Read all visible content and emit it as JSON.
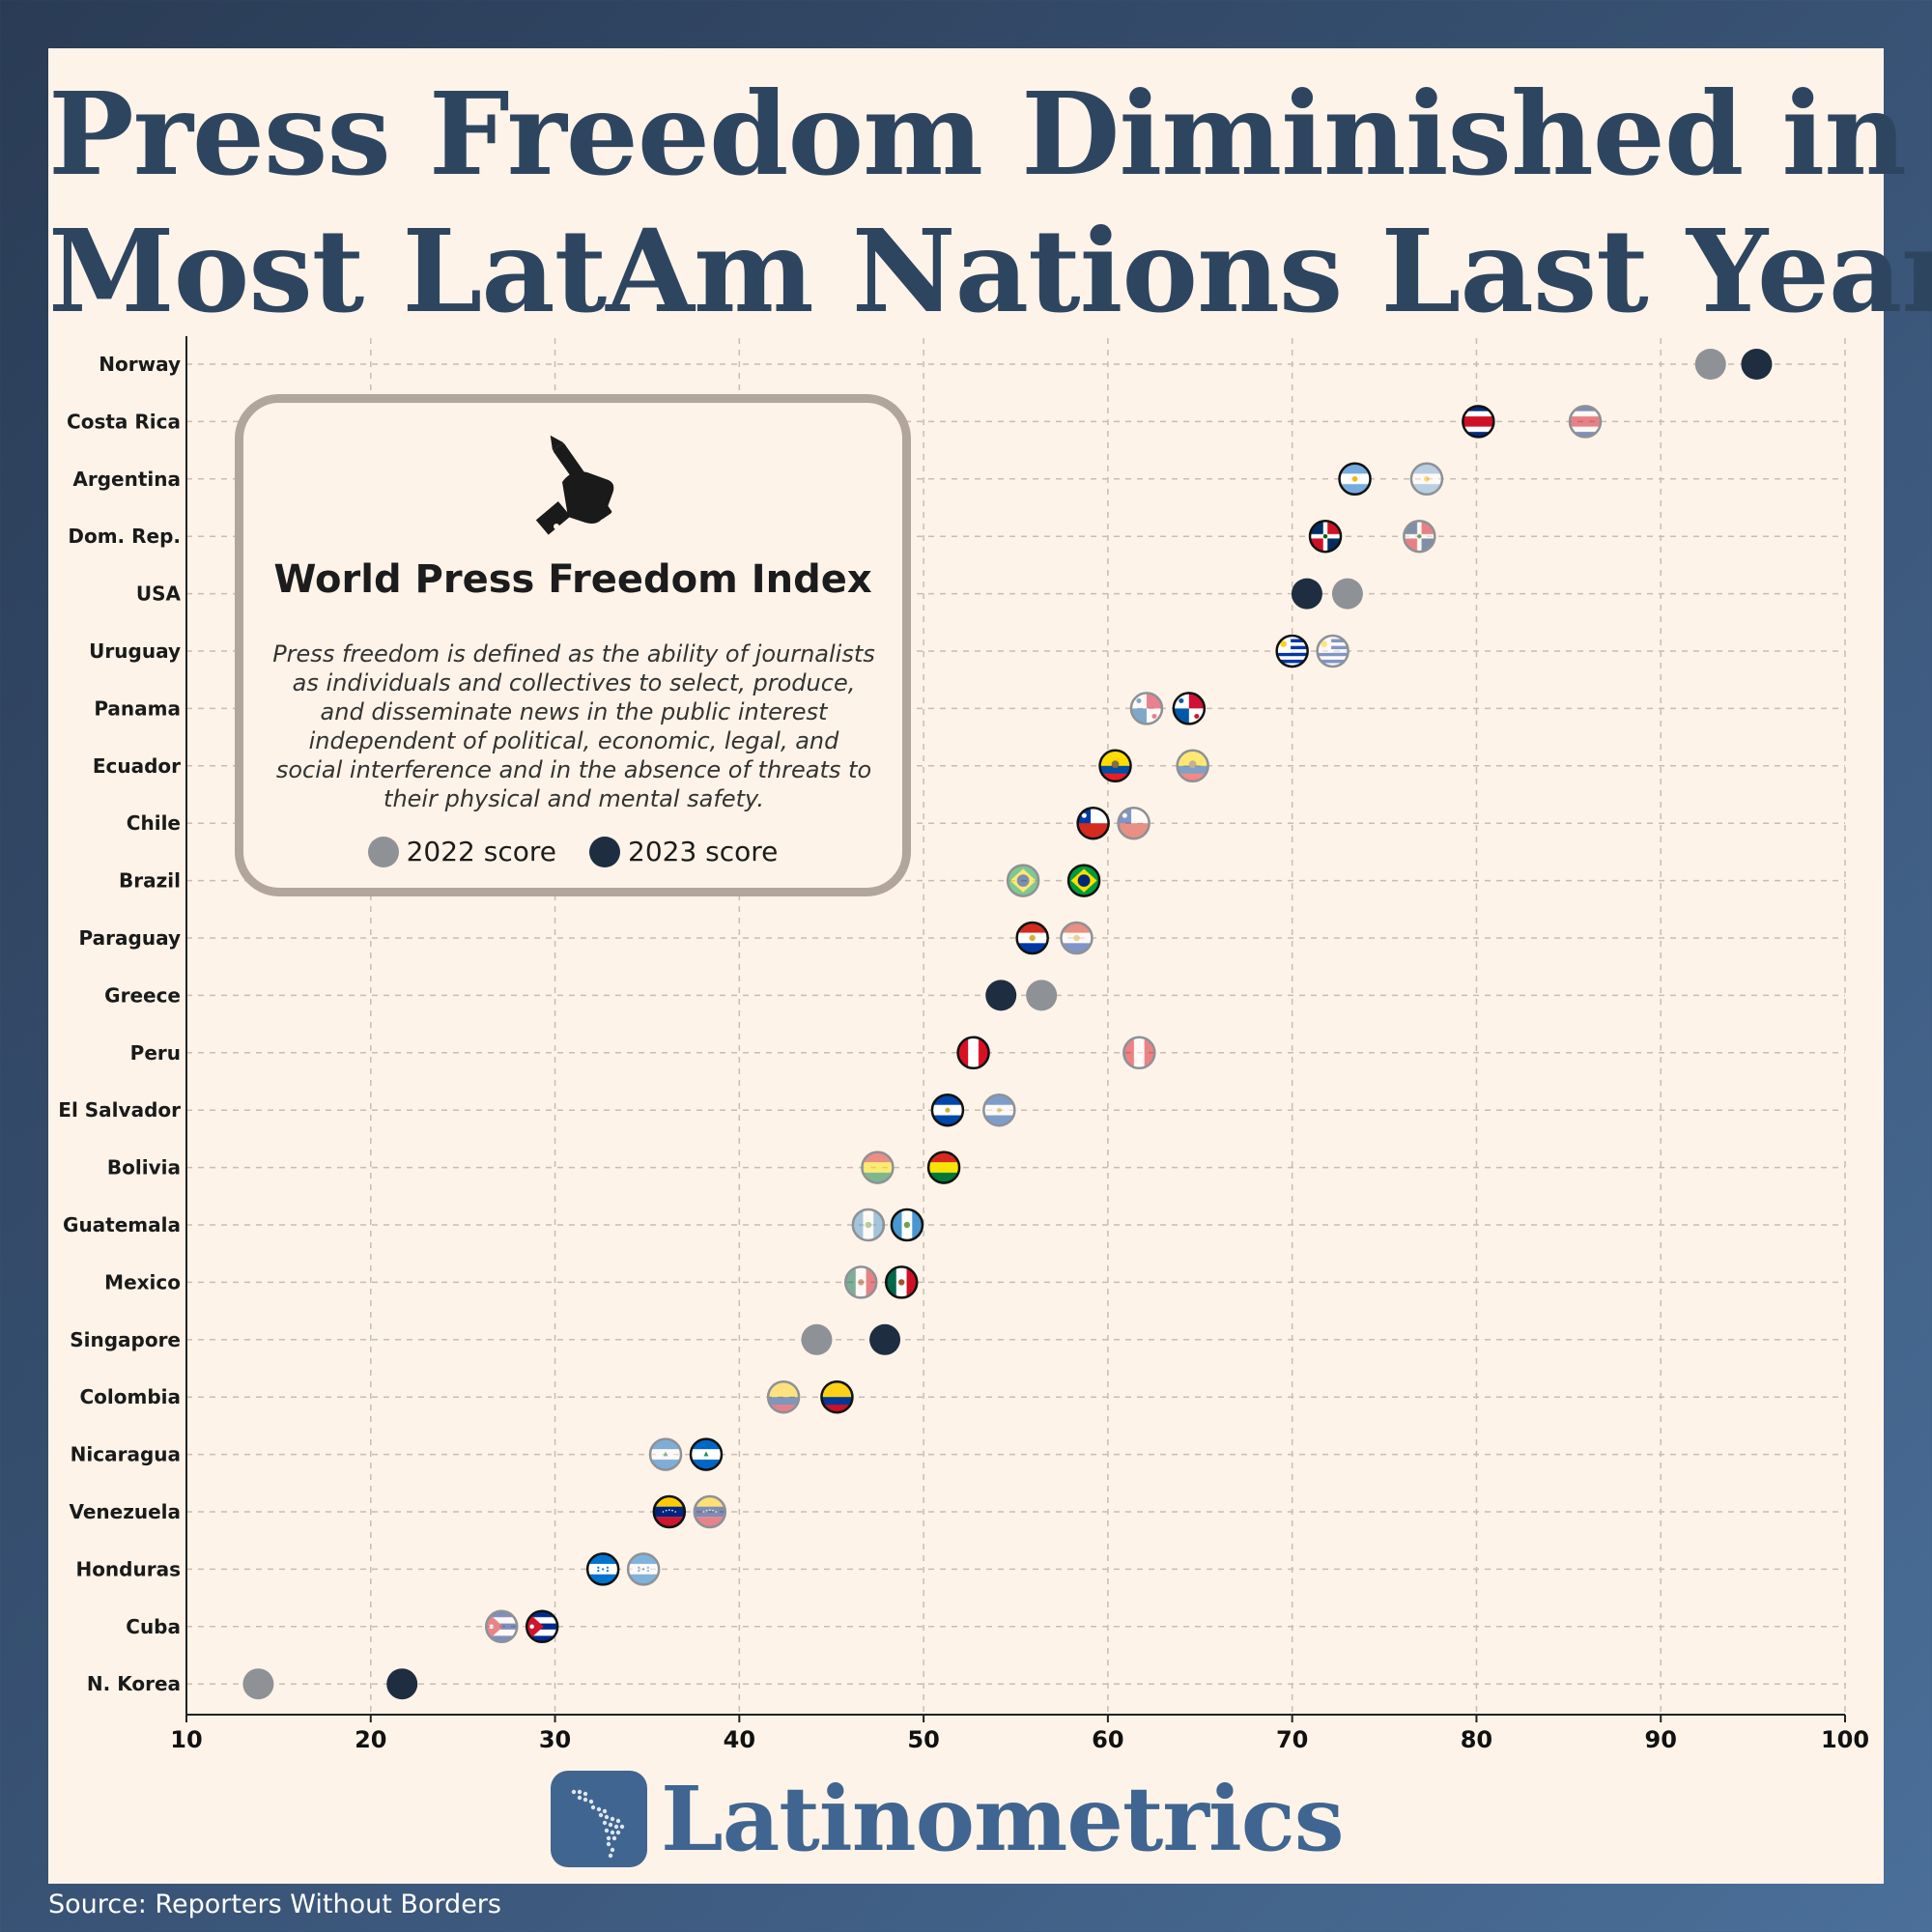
{
  "title": {
    "line1": "Press Freedom Diminished in",
    "line2": "Most LatAm Nations Last Year"
  },
  "infobox": {
    "icon": "hand-holding-pencil-icon",
    "title": "World Press Freedom Index",
    "text": "Press freedom is defined as the ability of journalists as individuals and collectives to select, produce, and disseminate news in the public interest independent of political, economic, legal, and social interference and in the absence of threats to their physical and mental safety.",
    "legend": [
      {
        "label": "2022 score",
        "color": "#8e9196"
      },
      {
        "label": "2023 score",
        "color": "#1f2d40"
      }
    ]
  },
  "brand": "Latinometrics",
  "source": "Source: Reporters Without Borders",
  "colors": {
    "gray2022": "#8e9196",
    "navy2023": "#1f2d40",
    "title": "#2e4560",
    "brand": "#3f6590"
  },
  "chart_data": {
    "type": "dumbbell",
    "xlim": [
      10,
      100
    ],
    "x_ticks": [
      10,
      20,
      30,
      40,
      50,
      60,
      70,
      80,
      90,
      100
    ],
    "grid": true,
    "series": [
      {
        "name": "2022 score"
      },
      {
        "name": "2023 score"
      }
    ],
    "rows": [
      {
        "country": "Norway",
        "flag": "none",
        "v2022": 92.7,
        "v2023": 95.2
      },
      {
        "country": "Costa Rica",
        "flag": "costa-rica",
        "v2022": 85.9,
        "v2023": 80.1
      },
      {
        "country": "Argentina",
        "flag": "argentina",
        "v2022": 77.3,
        "v2023": 73.4
      },
      {
        "country": "Dom. Rep.",
        "flag": "dominican-republic",
        "v2022": 76.9,
        "v2023": 71.8
      },
      {
        "country": "USA",
        "flag": "none",
        "v2022": 73.0,
        "v2023": 70.8
      },
      {
        "country": "Uruguay",
        "flag": "uruguay",
        "v2022": 72.2,
        "v2023": 70.0
      },
      {
        "country": "Panama",
        "flag": "panama",
        "v2022": 62.1,
        "v2023": 64.4
      },
      {
        "country": "Ecuador",
        "flag": "ecuador",
        "v2022": 64.6,
        "v2023": 60.4
      },
      {
        "country": "Chile",
        "flag": "chile",
        "v2022": 61.4,
        "v2023": 59.2
      },
      {
        "country": "Brazil",
        "flag": "brazil",
        "v2022": 55.4,
        "v2023": 58.7
      },
      {
        "country": "Paraguay",
        "flag": "paraguay",
        "v2022": 58.3,
        "v2023": 55.9
      },
      {
        "country": "Greece",
        "flag": "none",
        "v2022": 56.4,
        "v2023": 54.2
      },
      {
        "country": "Peru",
        "flag": "peru",
        "v2022": 61.7,
        "v2023": 52.7
      },
      {
        "country": "El Salvador",
        "flag": "el-salvador",
        "v2022": 54.1,
        "v2023": 51.3
      },
      {
        "country": "Bolivia",
        "flag": "bolivia",
        "v2022": 47.5,
        "v2023": 51.1
      },
      {
        "country": "Guatemala",
        "flag": "guatemala",
        "v2022": 47.0,
        "v2023": 49.1
      },
      {
        "country": "Mexico",
        "flag": "mexico",
        "v2022": 46.6,
        "v2023": 48.8
      },
      {
        "country": "Singapore",
        "flag": "none",
        "v2022": 44.2,
        "v2023": 47.9
      },
      {
        "country": "Colombia",
        "flag": "colombia",
        "v2022": 42.4,
        "v2023": 45.3
      },
      {
        "country": "Nicaragua",
        "flag": "nicaragua",
        "v2022": 36.0,
        "v2023": 38.2
      },
      {
        "country": "Venezuela",
        "flag": "venezuela",
        "v2022": 38.4,
        "v2023": 36.2
      },
      {
        "country": "Honduras",
        "flag": "honduras",
        "v2022": 34.8,
        "v2023": 32.6
      },
      {
        "country": "Cuba",
        "flag": "cuba",
        "v2022": 27.1,
        "v2023": 29.3
      },
      {
        "country": "N. Korea",
        "flag": "none",
        "v2022": 13.9,
        "v2023": 21.7
      }
    ]
  }
}
